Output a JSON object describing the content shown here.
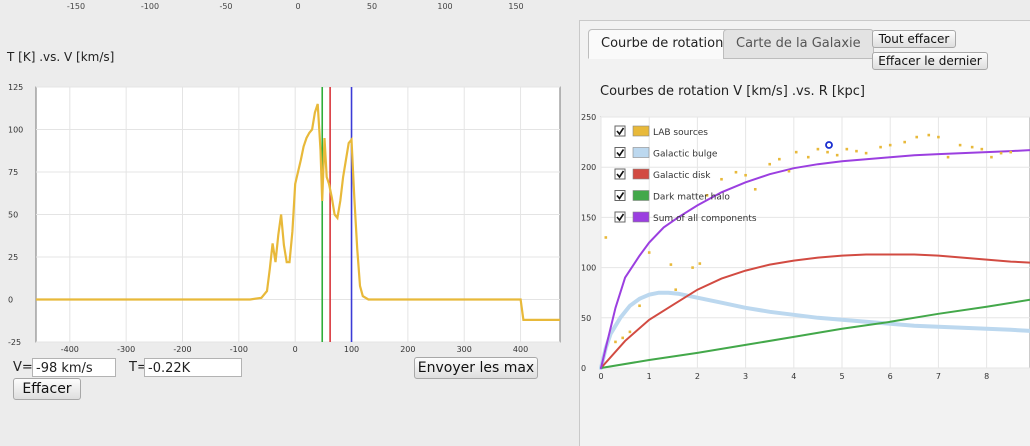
{
  "left": {
    "top_ticks": [
      "-150",
      "-100",
      "-50",
      "0",
      "50",
      "100",
      "150"
    ],
    "title": "T [K] .vs. V [km/s]",
    "y_ticks": [
      "125",
      "100",
      "75",
      "50",
      "25",
      "0",
      "-25"
    ],
    "x_ticks": [
      "-400",
      "-300",
      "-200",
      "-100",
      "0",
      "100",
      "200",
      "300",
      "400"
    ],
    "v_label": "V=",
    "v_value": "-98 km/s",
    "t_label": "T=",
    "t_value": "-0.22K",
    "send_button": "Envoyer les max",
    "clear_button": "Effacer",
    "markers": [
      {
        "x": 48,
        "color": "#2fae3a"
      },
      {
        "x": 62,
        "color": "#d9363b"
      },
      {
        "x": 100,
        "color": "#3b3bd6"
      }
    ]
  },
  "right": {
    "tabs": [
      "Courbe de rotation",
      "Carte de la Galaxie"
    ],
    "clear_all": "Tout effacer",
    "clear_last": "Effacer le dernier",
    "title": "Courbes de rotation V [km/s] .vs. R [kpc]",
    "y_ticks": [
      "250",
      "200",
      "150",
      "100",
      "50",
      "0"
    ],
    "x_ticks": [
      "0",
      "1",
      "2",
      "3",
      "4",
      "5",
      "6",
      "7",
      "8"
    ],
    "legend": [
      {
        "label": "LAB sources",
        "color": "#e8b93a"
      },
      {
        "label": "Galactic bulge",
        "color": "#bcd8ef"
      },
      {
        "label": "Galactic disk",
        "color": "#d24b42"
      },
      {
        "label": "Dark matter halo",
        "color": "#43a84a"
      },
      {
        "label": "Sum of all components",
        "color": "#9b3fe0"
      }
    ]
  },
  "chart_data": [
    {
      "type": "line",
      "title": "T [K] .vs. V [km/s]",
      "xlabel": "",
      "ylabel": "",
      "xlim": [
        -460,
        470
      ],
      "ylim": [
        -25,
        125
      ],
      "series": [
        {
          "x": [
            -460,
            -80,
            -60,
            -50,
            -45,
            -40,
            -35,
            -30,
            -25,
            -20,
            -15,
            -10,
            -5,
            0,
            5,
            10,
            15,
            20,
            25,
            30,
            35,
            40,
            45,
            48,
            52,
            56,
            60,
            65,
            70,
            75,
            80,
            85,
            90,
            95,
            100,
            105,
            110,
            115,
            120,
            130,
            400,
            405,
            470
          ],
          "values": [
            0,
            0,
            1,
            5,
            18,
            33,
            22,
            38,
            50,
            32,
            22,
            22,
            40,
            68,
            75,
            82,
            90,
            95,
            98,
            100,
            110,
            115,
            88,
            58,
            95,
            72,
            68,
            60,
            50,
            48,
            58,
            72,
            82,
            92,
            94,
            60,
            30,
            8,
            2,
            0,
            0,
            -12,
            -12
          ]
        }
      ]
    },
    {
      "type": "line",
      "title": "Courbes de rotation V [km/s] .vs. R [kpc]",
      "xlabel": "",
      "ylabel": "",
      "xlim": [
        0,
        8.9
      ],
      "ylim": [
        0,
        250
      ],
      "series": [
        {
          "name": "LAB sources",
          "type": "scatter",
          "x": [
            0.1,
            0.3,
            0.45,
            0.6,
            0.8,
            1.0,
            1.45,
            1.55,
            1.9,
            2.05,
            2.2,
            2.5,
            2.8,
            3.0,
            3.2,
            3.5,
            3.7,
            3.9,
            4.05,
            4.3,
            4.5,
            4.7,
            4.9,
            5.1,
            5.3,
            5.5,
            5.8,
            6.0,
            6.3,
            6.55,
            6.8,
            7.0,
            7.2,
            7.45,
            7.7,
            7.9,
            8.1,
            8.3,
            8.5
          ],
          "values": [
            130,
            26,
            30,
            36,
            62,
            115,
            103,
            78,
            100,
            104,
            172,
            188,
            195,
            192,
            178,
            203,
            208,
            196,
            215,
            210,
            218,
            215,
            212,
            218,
            216,
            214,
            220,
            222,
            225,
            230,
            232,
            230,
            210,
            222,
            220,
            218,
            210,
            214,
            215
          ]
        },
        {
          "name": "Galactic bulge",
          "x": [
            0,
            0.1,
            0.2,
            0.4,
            0.6,
            0.8,
            1.0,
            1.2,
            1.4,
            1.6,
            1.8,
            2.0,
            2.5,
            3.0,
            3.5,
            4.0,
            4.5,
            5.0,
            5.5,
            6.0,
            6.5,
            7.0,
            7.5,
            8.0,
            8.5,
            8.9
          ],
          "values": [
            0,
            20,
            34,
            50,
            62,
            69,
            73,
            75,
            75,
            74,
            72,
            70,
            65,
            60,
            56,
            53,
            50,
            48,
            46,
            44,
            42,
            41,
            40,
            39,
            38,
            37
          ]
        },
        {
          "name": "Galactic disk",
          "x": [
            0,
            0.5,
            1.0,
            1.5,
            2.0,
            2.5,
            3.0,
            3.5,
            4.0,
            4.5,
            5.0,
            5.5,
            6.0,
            6.5,
            7.0,
            7.5,
            8.0,
            8.5,
            8.9
          ],
          "values": [
            0,
            27,
            48,
            63,
            78,
            89,
            97,
            103,
            107,
            110,
            112,
            113,
            113,
            113,
            112,
            110,
            108,
            106,
            105
          ]
        },
        {
          "name": "Dark matter halo",
          "x": [
            0,
            1,
            2,
            3,
            4,
            5,
            6,
            7,
            8,
            8.9
          ],
          "values": [
            0,
            8,
            15,
            23,
            31,
            39,
            46,
            54,
            61,
            68
          ]
        },
        {
          "name": "Sum of all components",
          "x": [
            0,
            0.1,
            0.3,
            0.5,
            0.8,
            1.0,
            1.3,
            1.6,
            2.0,
            2.5,
            3.0,
            3.5,
            4.0,
            4.5,
            5.0,
            5.5,
            6.0,
            6.5,
            7.0,
            7.5,
            8.0,
            8.5,
            8.9
          ],
          "values": [
            0,
            20,
            60,
            90,
            112,
            125,
            140,
            150,
            162,
            175,
            185,
            193,
            199,
            203,
            206,
            208,
            210,
            212,
            213,
            214,
            215,
            216,
            217
          ]
        }
      ]
    }
  ]
}
